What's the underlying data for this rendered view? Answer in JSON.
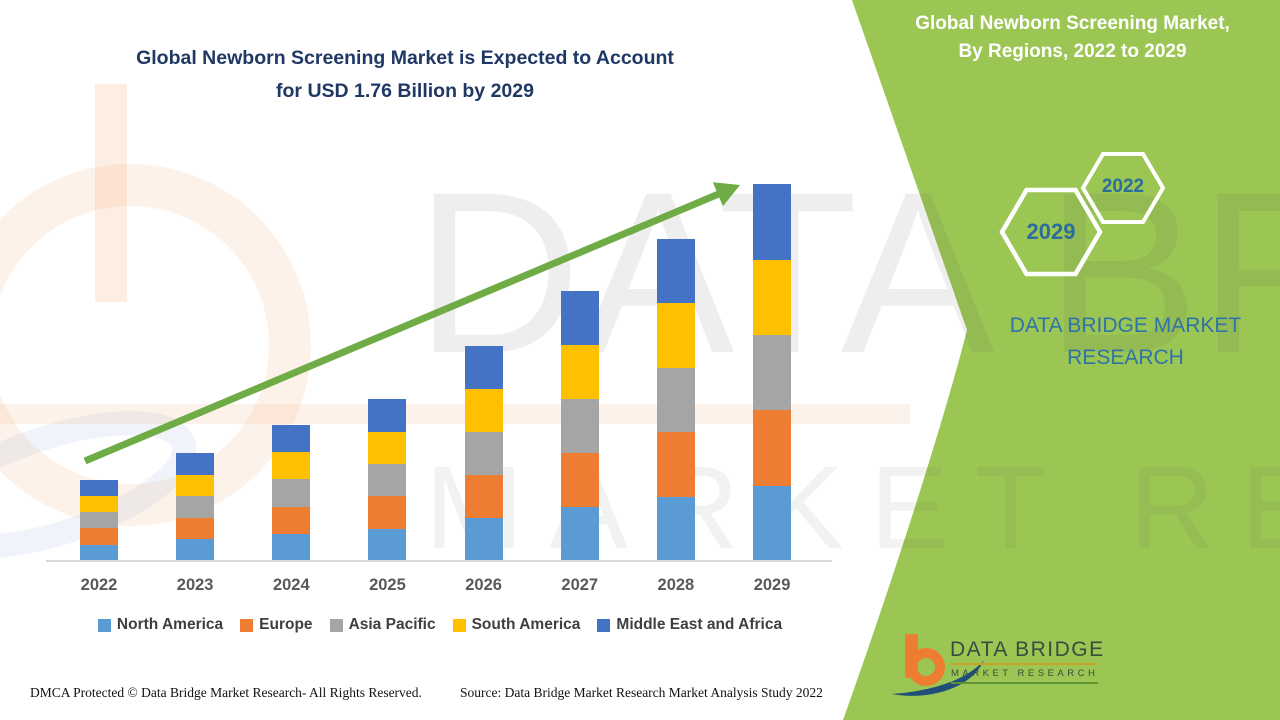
{
  "header": {
    "main_title_line1": "Global Newborn Screening Market is Expected to Account",
    "main_title_line2": "for USD 1.76 Billion by 2029",
    "side_title_line1": "Global Newborn Screening Market,",
    "side_title_line2": "By Regions, 2022 to 2029"
  },
  "badges": {
    "hex_front_year": "2029",
    "hex_back_year": "2022"
  },
  "brand": {
    "side_name_line1": "DATA BRIDGE MARKET",
    "side_name_line2": "RESEARCH",
    "logo_title": "DATA BRIDGE",
    "logo_subtitle": "MARKET RESEARCH"
  },
  "watermark": {
    "line1": "DATA BRIDGE",
    "line2": "MARKET RESEARCH"
  },
  "footer": {
    "dmca": "DMCA Protected © Data Bridge Market Research- All Rights Reserved.",
    "source": "Source: Data Bridge Market Research Market Analysis Study 2022"
  },
  "colors": {
    "green_band": "#9BC653",
    "title_navy": "#1F3864",
    "hex_year_text": "#2C6D9B",
    "brand_blue": "#2E74A8",
    "arrow_green": "#6FAC46",
    "axis_label": "#595959",
    "legend_text": "#3F3F3F"
  },
  "chart_data": {
    "type": "bar",
    "stacked": true,
    "title": "Global Newborn Screening Market, By Regions, 2022 to 2029",
    "unit": "USD Billion",
    "categories": [
      "2022",
      "2023",
      "2024",
      "2025",
      "2026",
      "2027",
      "2028",
      "2029"
    ],
    "series": [
      {
        "name": "North America",
        "color": "#5B9BD5",
        "values": [
          0.076,
          0.101,
          0.127,
          0.151,
          0.201,
          0.252,
          0.301,
          0.352
        ]
      },
      {
        "name": "Europe",
        "color": "#ED7D31",
        "values": [
          0.076,
          0.101,
          0.127,
          0.151,
          0.201,
          0.252,
          0.301,
          0.352
        ]
      },
      {
        "name": "Asia Pacific",
        "color": "#A5A5A5",
        "values": [
          0.076,
          0.101,
          0.127,
          0.151,
          0.201,
          0.252,
          0.301,
          0.352
        ]
      },
      {
        "name": "South America",
        "color": "#FFC000",
        "values": [
          0.076,
          0.101,
          0.127,
          0.151,
          0.201,
          0.252,
          0.301,
          0.352
        ]
      },
      {
        "name": "Middle East and Africa",
        "color": "#4472C4",
        "values": [
          0.076,
          0.101,
          0.127,
          0.151,
          0.201,
          0.252,
          0.301,
          0.352
        ]
      }
    ],
    "totals": [
      0.38,
      0.505,
      0.635,
      0.755,
      1.005,
      1.26,
      1.505,
      1.76
    ],
    "ylim": [
      0,
      1.8
    ],
    "grid": false,
    "axes_labeled": false,
    "legend_position": "bottom",
    "trend_arrow": true
  }
}
